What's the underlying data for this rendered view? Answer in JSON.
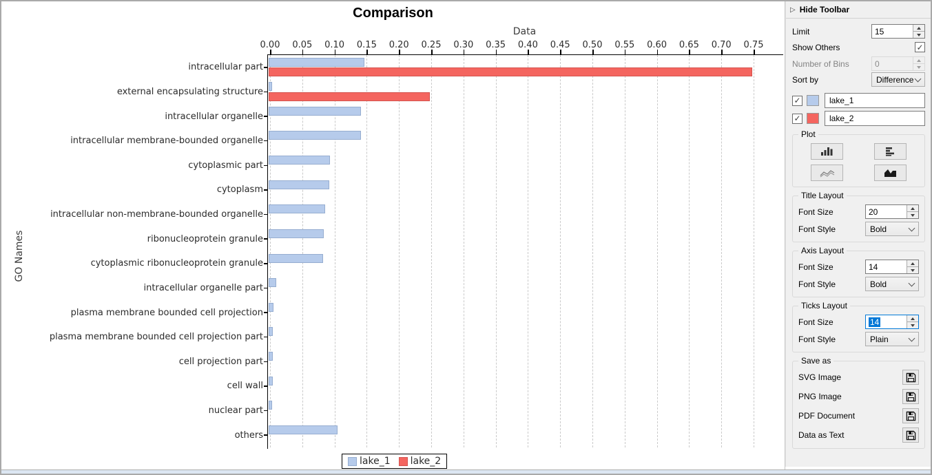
{
  "chart_data": {
    "type": "bar",
    "orientation": "horizontal",
    "title": "Comparison",
    "xlabel": "Data",
    "ylabel": "GO Names",
    "xlim": [
      0,
      0.78
    ],
    "xtick_labels": [
      "0.00",
      "0.05",
      "0.10",
      "0.15",
      "0.20",
      "0.25",
      "0.30",
      "0.35",
      "0.40",
      "0.45",
      "0.50",
      "0.55",
      "0.60",
      "0.65",
      "0.70",
      "0.75"
    ],
    "grid": true,
    "legend_position": "bottom",
    "categories": [
      "intracellular part",
      "external encapsulating structure",
      "intracellular organelle",
      "intracellular membrane-bounded organelle",
      "cytoplasmic part",
      "cytoplasm",
      "intracellular non-membrane-bounded organelle",
      "ribonucleoprotein granule",
      "cytoplasmic ribonucleoprotein granule",
      "intracellular organelle part",
      "plasma membrane bounded cell projection",
      "plasma membrane bounded cell projection part",
      "cell projection part",
      "cell wall",
      "nuclear part",
      "others"
    ],
    "series": [
      {
        "name": "lake_1",
        "color": "#b6cbeb",
        "values": [
          0.148,
          0.005,
          0.143,
          0.143,
          0.095,
          0.094,
          0.088,
          0.085,
          0.084,
          0.012,
          0.007,
          0.006,
          0.006,
          0.006,
          0.005,
          0.107
        ]
      },
      {
        "name": "lake_2",
        "color": "#f4655f",
        "values": [
          0.75,
          0.25,
          0,
          0,
          0,
          0,
          0,
          0,
          0,
          0,
          0,
          0,
          0,
          0,
          0,
          0
        ]
      }
    ]
  },
  "toolbar": {
    "header": "Hide Toolbar",
    "limit": {
      "label": "Limit",
      "value": "15"
    },
    "show_others": {
      "label": "Show Others",
      "checked": true
    },
    "number_of_bins": {
      "label": "Number of Bins",
      "value": "0",
      "disabled": true
    },
    "sort_by": {
      "label": "Sort by",
      "value": "Difference"
    },
    "series_rows": [
      {
        "name": "lake_1",
        "color": "#b6cbeb",
        "checked": true
      },
      {
        "name": "lake_2",
        "color": "#f4655f",
        "checked": true
      }
    ],
    "plot_group": {
      "label": "Plot"
    },
    "title_layout": {
      "label": "Title Layout",
      "font_size_label": "Font Size",
      "font_size": "20",
      "font_style_label": "Font Style",
      "font_style": "Bold"
    },
    "axis_layout": {
      "label": "Axis Layout",
      "font_size_label": "Font Size",
      "font_size": "14",
      "font_style_label": "Font Style",
      "font_style": "Bold"
    },
    "ticks_layout": {
      "label": "Ticks Layout",
      "font_size_label": "Font Size",
      "font_size": "14",
      "font_style_label": "Font Style",
      "font_style": "Plain"
    },
    "save_as": {
      "label": "Save as",
      "items": [
        "SVG Image",
        "PNG Image",
        "PDF Document",
        "Data as Text"
      ]
    }
  }
}
